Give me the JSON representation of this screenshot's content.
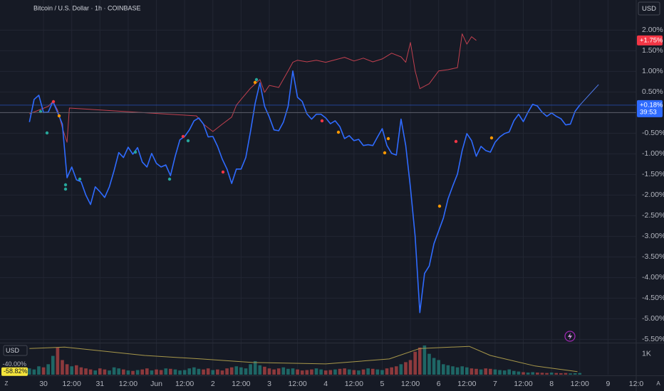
{
  "chart_data": [
    {
      "type": "line",
      "title": "Bitcoin / U.S. Dollar · 1h · COINBASE",
      "currency": "USD",
      "countdown": "39:53",
      "grid": true,
      "xlim": [
        -18.5,
        252
      ],
      "ylim": [
        -5.58,
        2.73
      ],
      "xticks": [
        {
          "value": 0,
          "label": "30"
        },
        {
          "value": 12,
          "label": "12:00"
        },
        {
          "value": 24,
          "label": "31"
        },
        {
          "value": 36,
          "label": "12:00"
        },
        {
          "value": 48,
          "label": "Jun"
        },
        {
          "value": 60,
          "label": "12:00"
        },
        {
          "value": 72,
          "label": "2"
        },
        {
          "value": 84,
          "label": "12:00"
        },
        {
          "value": 96,
          "label": "3"
        },
        {
          "value": 108,
          "label": "12:00"
        },
        {
          "value": 120,
          "label": "4"
        },
        {
          "value": 132,
          "label": "12:00"
        },
        {
          "value": 144,
          "label": "5"
        },
        {
          "value": 156,
          "label": "12:00"
        },
        {
          "value": 168,
          "label": "6"
        },
        {
          "value": 180,
          "label": "12:00"
        },
        {
          "value": 192,
          "label": "7"
        },
        {
          "value": 204,
          "label": "12:00"
        },
        {
          "value": 216,
          "label": "8"
        },
        {
          "value": 228,
          "label": "12:00"
        },
        {
          "value": 240,
          "label": "9"
        },
        {
          "value": 252,
          "label": "12:0"
        }
      ],
      "yticks": [
        {
          "value": 2,
          "label": "2.00%"
        },
        {
          "value": 1.5,
          "label": "1.50%"
        },
        {
          "value": 1,
          "label": "1.00%"
        },
        {
          "value": 0.5,
          "label": "0.50%"
        },
        {
          "value": -0.5,
          "label": "-0.50%"
        },
        {
          "value": -1,
          "label": "-1.00%"
        },
        {
          "value": -1.5,
          "label": "-1.50%"
        },
        {
          "value": -2,
          "label": "-2.00%"
        },
        {
          "value": -2.5,
          "label": "-2.50%"
        },
        {
          "value": -3,
          "label": "-3.00%"
        },
        {
          "value": -3.5,
          "label": "-3.50%"
        },
        {
          "value": -4,
          "label": "-4.00%"
        },
        {
          "value": -4.5,
          "label": "-4.50%"
        },
        {
          "value": -5,
          "label": "-5.00%"
        },
        {
          "value": -5.5,
          "label": "-5.50%"
        }
      ],
      "x": [
        -6,
        -4,
        -2,
        0,
        2,
        4,
        6,
        8,
        10,
        12,
        14,
        16,
        18,
        20,
        22,
        24,
        26,
        28,
        30,
        32,
        34,
        36,
        38,
        40,
        42,
        44,
        46,
        48,
        50,
        52,
        54,
        56,
        58,
        60,
        62,
        64,
        66,
        68,
        70,
        72,
        74,
        76,
        78,
        80,
        82,
        84,
        86,
        88,
        90,
        92,
        94,
        96,
        98,
        100,
        102,
        104,
        106,
        108,
        110,
        112,
        114,
        116,
        118,
        120,
        122,
        124,
        126,
        128,
        130,
        132,
        134,
        136,
        138,
        140,
        142,
        144,
        146,
        148,
        150,
        152,
        154,
        156,
        158,
        160,
        162,
        164,
        166,
        168,
        170,
        172,
        174,
        176,
        178,
        180,
        182,
        184,
        186,
        188,
        190,
        192,
        194,
        196,
        198,
        200,
        202,
        204,
        206,
        208,
        210,
        212,
        214,
        216,
        218,
        220,
        222,
        224,
        226,
        228
      ],
      "series": [
        {
          "color": "#2f6bff",
          "last_label": "+0.18%",
          "values": [
            -0.23,
            0.32,
            0.42,
            0.0,
            0.01,
            0.27,
            0.0,
            -0.28,
            -1.58,
            -1.32,
            -1.63,
            -1.68,
            -2.0,
            -2.23,
            -1.8,
            -1.92,
            -2.06,
            -1.8,
            -1.41,
            -0.97,
            -1.09,
            -0.84,
            -1.01,
            -0.85,
            -1.2,
            -1.32,
            -0.99,
            -1.23,
            -1.32,
            -1.27,
            -1.53,
            -1.06,
            -0.66,
            -0.58,
            -0.42,
            -0.2,
            -0.13,
            -0.28,
            -0.59,
            -0.58,
            -0.82,
            -1.13,
            -1.37,
            -1.72,
            -1.37,
            -1.37,
            -1.09,
            -0.46,
            0.23,
            0.72,
            0.15,
            -0.11,
            -0.42,
            -0.44,
            -0.23,
            0.15,
            1.01,
            0.37,
            0.27,
            -0.03,
            -0.16,
            -0.04,
            -0.04,
            -0.13,
            -0.27,
            -0.2,
            -0.34,
            -0.63,
            -0.56,
            -0.68,
            -0.65,
            -0.8,
            -0.78,
            -0.8,
            -0.59,
            -0.39,
            -0.8,
            -0.99,
            -1.03,
            -0.16,
            -0.8,
            -1.82,
            -3.0,
            -4.85,
            -3.9,
            -3.72,
            -3.18,
            -2.87,
            -2.56,
            -2.09,
            -1.78,
            -1.49,
            -0.92,
            -0.51,
            -0.68,
            -1.06,
            -0.82,
            -0.92,
            -0.96,
            -0.72,
            -0.59,
            -0.51,
            -0.47,
            -0.2,
            -0.04,
            -0.22,
            0.01,
            0.2,
            0.16,
            0.01,
            -0.09,
            -0.01,
            -0.09,
            -0.15,
            -0.3,
            -0.28,
            0.03,
            0.18
          ]
        },
        {
          "color": "#4f7cf0",
          "x": [
            228,
            236
          ],
          "values": [
            0.18,
            0.68
          ]
        },
        {
          "color": "#c2404f",
          "last_label": "+1.75%",
          "x": [
            -6,
            -2,
            2,
            4,
            6,
            8,
            10,
            11,
            65,
            68,
            72,
            76,
            80,
            82,
            84,
            88,
            92,
            94,
            96,
            100,
            104,
            106,
            108,
            112,
            116,
            120,
            124,
            128,
            132,
            136,
            140,
            144,
            148,
            152,
            154,
            156,
            158,
            160,
            164,
            168,
            172,
            176,
            178,
            180,
            182,
            184
          ],
          "values": [
            -0.03,
            0.06,
            0.15,
            0.27,
            0.06,
            -0.37,
            -0.72,
            0.11,
            -0.08,
            -0.28,
            -0.46,
            -0.28,
            -0.11,
            0.18,
            0.32,
            0.59,
            0.8,
            0.49,
            0.66,
            0.61,
            1.01,
            1.22,
            1.27,
            1.23,
            1.27,
            1.22,
            1.28,
            1.34,
            1.25,
            1.32,
            1.23,
            1.3,
            1.44,
            1.35,
            1.22,
            1.7,
            1.01,
            0.58,
            0.7,
            1.01,
            1.04,
            1.09,
            1.91,
            1.66,
            1.84,
            1.75
          ]
        }
      ]
    },
    {
      "type": "bar",
      "currency": "USD",
      "up_color": "rgba(38,166,154,0.55)",
      "down_color": "rgba(239,83,80,0.55)",
      "ylim": [
        0,
        1500
      ],
      "yticks": [
        {
          "value": 1000,
          "label": "1K"
        }
      ],
      "y2lim": [
        -67,
        17
      ],
      "y2ticks": [
        {
          "value": -40,
          "label": "-40.00%"
        }
      ],
      "values": [
        300,
        250,
        400,
        350,
        500,
        900,
        1300,
        700,
        500,
        400,
        450,
        350,
        300,
        250,
        200,
        300,
        250,
        200,
        350,
        300,
        250,
        200,
        180,
        220,
        250,
        300,
        200,
        250,
        220,
        300,
        280,
        250,
        200,
        220,
        300,
        350,
        280,
        250,
        300,
        220,
        250,
        200,
        300,
        350,
        400,
        350,
        300,
        500,
        650,
        450,
        380,
        300,
        250,
        300,
        350,
        280,
        300,
        250,
        200,
        220,
        250,
        300,
        250,
        200,
        220,
        250,
        280,
        300,
        250,
        220,
        200,
        250,
        300,
        280,
        250,
        220,
        300,
        350,
        400,
        500,
        600,
        700,
        1100,
        1300,
        1400,
        1000,
        800,
        700,
        500,
        450,
        400,
        350,
        400,
        350,
        300,
        280,
        250,
        300,
        280,
        250,
        220,
        200,
        250,
        180,
        150,
        120,
        100,
        120,
        100,
        90,
        80,
        100,
        80,
        70,
        80,
        60,
        70,
        80
      ],
      "series": [
        {
          "color": "#a8984a",
          "axis": "y2",
          "last_label": "-58.82%",
          "x": [
            -6,
            9,
            43,
            67,
            89,
            120,
            147,
            160,
            181,
            190,
            209,
            227
          ],
          "values": [
            3.3,
            7.1,
            -15.5,
            -24.9,
            -34.4,
            -38.1,
            -24.9,
            3.3,
            8.9,
            -15.5,
            -43.8,
            -58.82
          ]
        }
      ]
    }
  ],
  "controls": {
    "left": "Z",
    "right": "A"
  }
}
